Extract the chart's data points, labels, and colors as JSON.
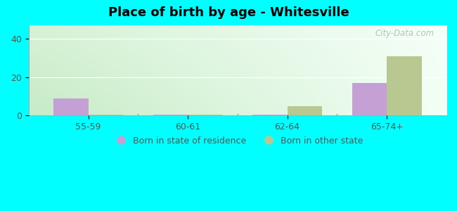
{
  "title": "Place of birth by age - Whitesville",
  "categories": [
    "55-59",
    "60-61",
    "62-64",
    "65-74+"
  ],
  "series": {
    "Born in state of residence": [
      9,
      0.5,
      0.5,
      17
    ],
    "Born in other state": [
      0.5,
      0.5,
      5,
      31
    ]
  },
  "colors": {
    "Born in state of residence": "#c4a0d4",
    "Born in other state": "#b8c890"
  },
  "ylim": [
    0,
    47
  ],
  "yticks": [
    0,
    20,
    40
  ],
  "bar_width": 0.35,
  "bg_topleft": "#d8f0d8",
  "bg_topright": "#f0fff8",
  "bg_bottomleft": "#c8e8c0",
  "bg_bottomright": "#ffffff",
  "figure_bg": "#00ffff",
  "watermark": "City-Data.com",
  "legend_labels": [
    "Born in state of residence",
    "Born in other state"
  ]
}
